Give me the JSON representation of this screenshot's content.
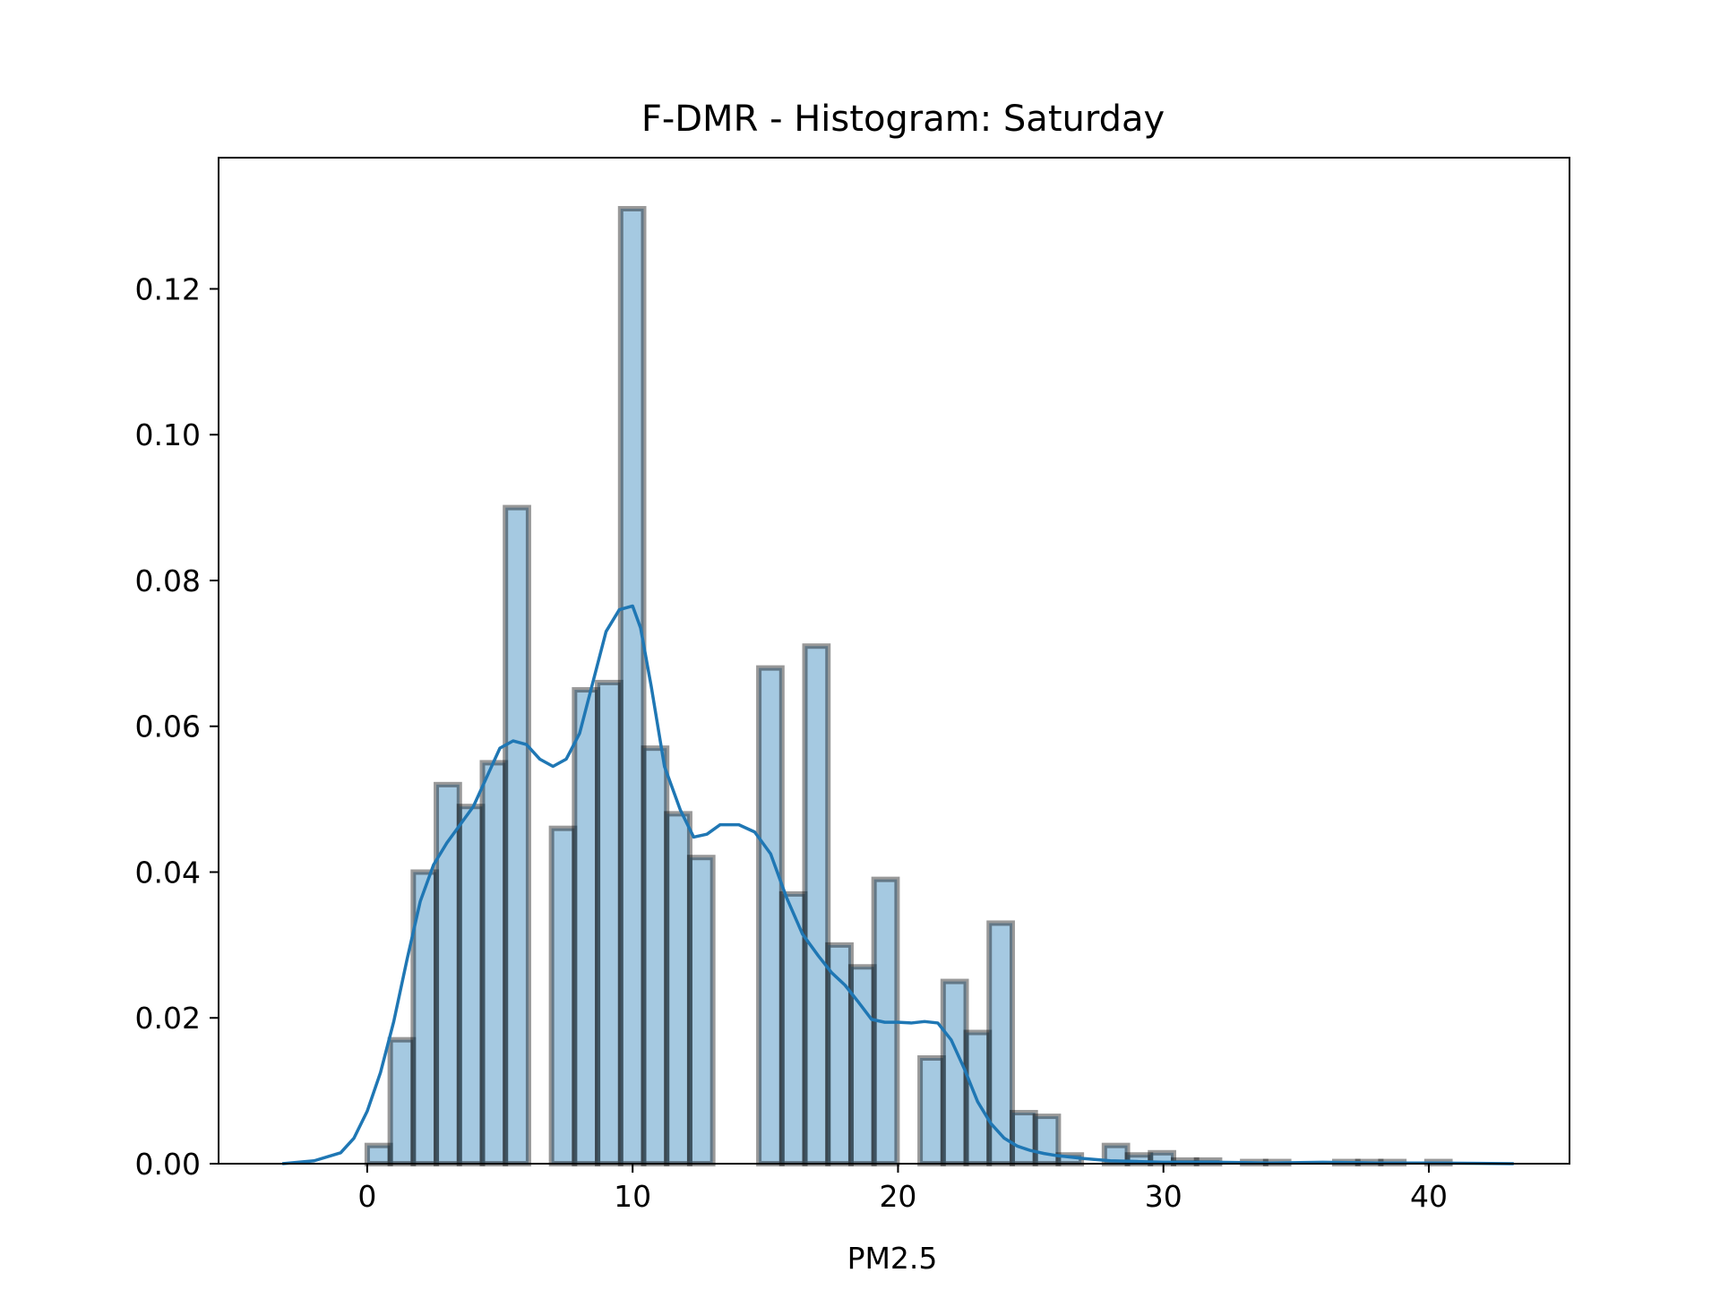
{
  "chart_data": {
    "type": "bar",
    "title": "F-DMR - Histogram: Saturday",
    "xlabel": "PM2.5",
    "ylabel": "",
    "xlim": [
      -5.6,
      45.3
    ],
    "ylim": [
      0,
      0.138
    ],
    "xticks": [
      0,
      10,
      20,
      30,
      40
    ],
    "xtick_labels": [
      "0",
      "10",
      "20",
      "30",
      "40"
    ],
    "yticks": [
      0.0,
      0.02,
      0.04,
      0.06,
      0.08,
      0.1,
      0.12
    ],
    "ytick_labels": [
      "0.00",
      "0.02",
      "0.04",
      "0.06",
      "0.08",
      "0.10",
      "0.12"
    ],
    "grid": false,
    "bar_color": "#1f77b4",
    "bar_edge_color": "#000000",
    "kde_color": "#1f77b4",
    "histogram": {
      "bin_start": 0,
      "bin_width": 0.868,
      "values": [
        0.0025,
        0.017,
        0.04,
        0.052,
        0.049,
        0.055,
        0.09,
        0.0,
        0.046,
        0.065,
        0.066,
        0.131,
        0.057,
        0.048,
        0.042,
        0.0,
        0.0,
        0.068,
        0.037,
        0.071,
        0.03,
        0.027,
        0.039,
        0.0,
        0.0145,
        0.025,
        0.018,
        0.033,
        0.007,
        0.0065,
        0.0012,
        0.0,
        0.0025,
        0.0012,
        0.0015,
        0.0005,
        0.0005,
        0.0,
        0.0003,
        0.0003,
        0.0,
        0.0,
        0.0003,
        0.0003,
        0.0003,
        0.0,
        0.0003,
        0.0
      ]
    },
    "kde": {
      "x": [
        -3.2,
        -2.0,
        -1.0,
        -0.5,
        0.0,
        0.5,
        1.0,
        1.5,
        2.0,
        2.5,
        3.0,
        3.5,
        4.0,
        4.5,
        5.0,
        5.5,
        6.0,
        6.5,
        7.0,
        7.5,
        8.0,
        8.5,
        9.0,
        9.5,
        10.0,
        10.3,
        10.7,
        11.2,
        11.8,
        12.3,
        12.8,
        13.3,
        14.0,
        14.6,
        15.2,
        15.8,
        16.4,
        17.0,
        17.5,
        18.0,
        18.5,
        19.0,
        19.5,
        20.0,
        20.5,
        21.0,
        21.5,
        22.0,
        22.5,
        23.0,
        23.5,
        24.0,
        24.5,
        25.0,
        25.5,
        26.0,
        27.0,
        28.0,
        29.0,
        30.0,
        32.0,
        34.0,
        36.0,
        38.0,
        40.0,
        43.2
      ],
      "y": [
        0.0,
        0.0004,
        0.0015,
        0.0035,
        0.0072,
        0.0125,
        0.0195,
        0.028,
        0.036,
        0.041,
        0.044,
        0.0465,
        0.049,
        0.053,
        0.057,
        0.058,
        0.0575,
        0.0555,
        0.0545,
        0.0555,
        0.059,
        0.066,
        0.073,
        0.076,
        0.0765,
        0.0735,
        0.0655,
        0.0545,
        0.0485,
        0.0448,
        0.0452,
        0.0465,
        0.0465,
        0.0455,
        0.0425,
        0.0365,
        0.0315,
        0.0285,
        0.0262,
        0.0245,
        0.0222,
        0.0198,
        0.0194,
        0.0194,
        0.0193,
        0.0195,
        0.0193,
        0.017,
        0.013,
        0.0085,
        0.0055,
        0.0035,
        0.0024,
        0.0018,
        0.0014,
        0.0011,
        0.0007,
        0.0004,
        0.0003,
        0.0002,
        0.0002,
        0.0001,
        0.0002,
        0.0001,
        0.0001,
        0.0
      ]
    }
  }
}
